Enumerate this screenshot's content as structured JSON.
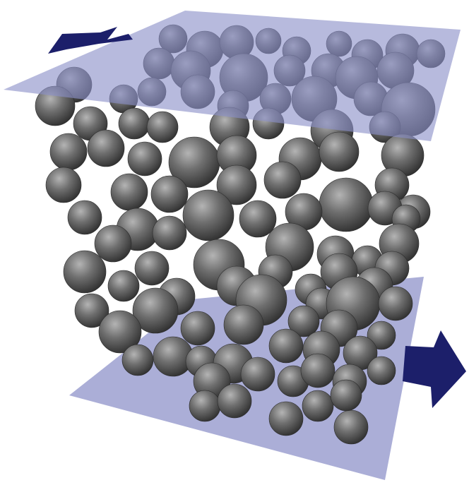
{
  "scene": {
    "description_visible_text": "",
    "colors": {
      "background": "#ffffff",
      "sphere": "#6f6f6f",
      "sphere_highlight": "#b0b0b0",
      "sphere_shadow": "#2e2e2e",
      "plate": "#8a8fc8",
      "plate_opacity": 0.72,
      "arrow": "#1c1f6a"
    },
    "icons": [
      "left-arrow-icon",
      "right-arrow-icon"
    ]
  }
}
